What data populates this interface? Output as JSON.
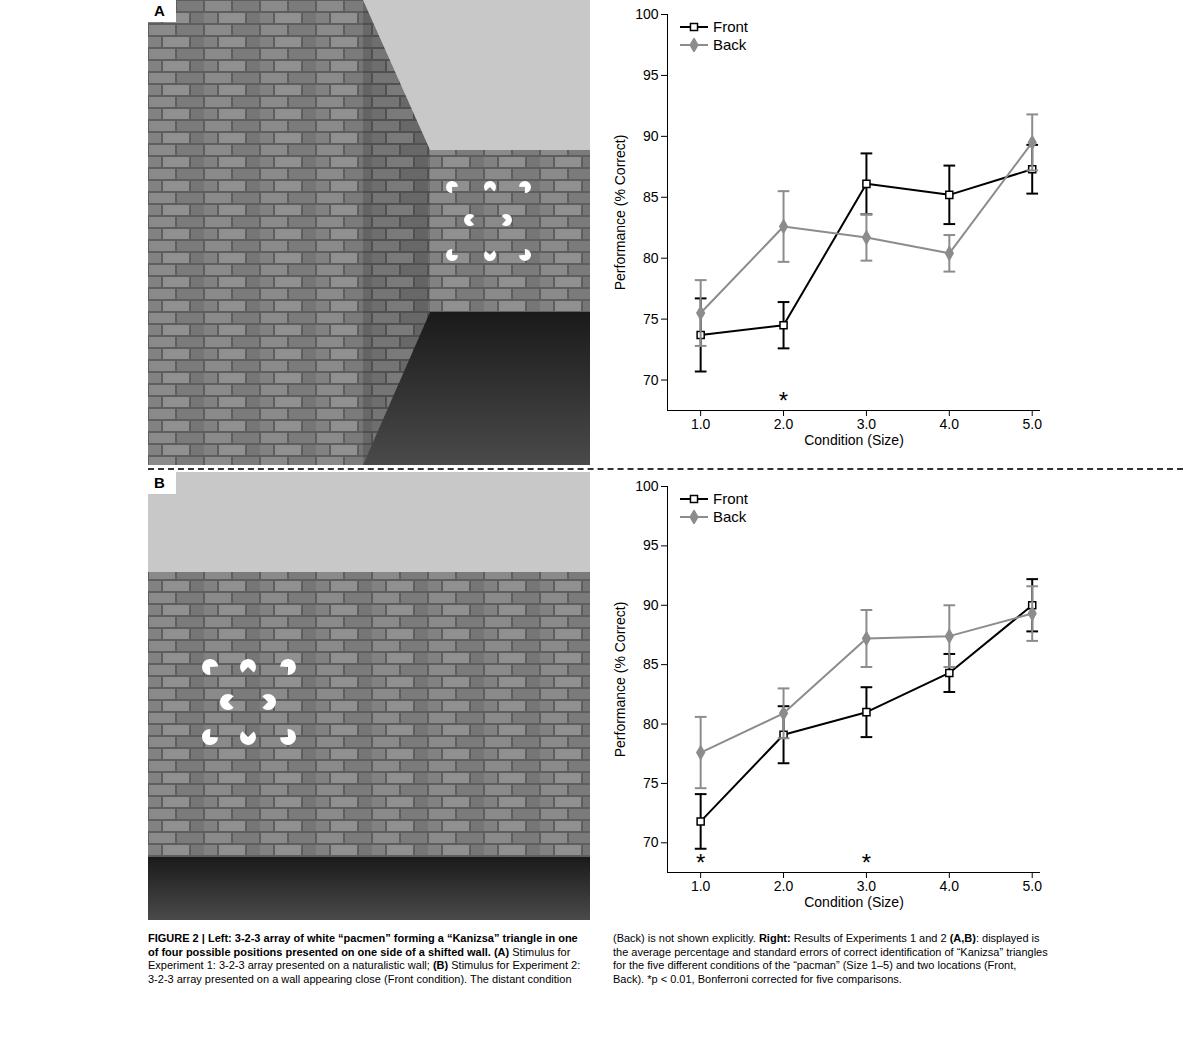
{
  "panels": [
    {
      "letter": "A"
    },
    {
      "letter": "B"
    }
  ],
  "chart_data": [
    {
      "type": "line",
      "x": [
        1,
        2,
        3,
        4,
        5
      ],
      "xlim": [
        0.6,
        5.1
      ],
      "xticks": [
        1,
        2,
        3,
        4,
        5
      ],
      "ylim": [
        67.5,
        100
      ],
      "yticks": [
        70,
        75,
        80,
        85,
        90,
        95,
        100
      ],
      "x_label": "Condition (Size)",
      "y_label": "Performance (% Correct)",
      "legend": "top-left",
      "grid": false,
      "series": [
        {
          "name": "Front",
          "color": "#000000",
          "marker": "open square",
          "line_style": "solid",
          "values": [
            73.7,
            74.5,
            86.1,
            85.2,
            87.3
          ],
          "errors": [
            3.0,
            1.9,
            2.5,
            2.4,
            2.0
          ]
        },
        {
          "name": "Back",
          "color": "#8c8c8c",
          "marker": "diamond",
          "line_style": "solid",
          "values": [
            75.5,
            82.6,
            81.7,
            80.4,
            89.5
          ],
          "errors": [
            2.7,
            2.9,
            1.9,
            1.5,
            2.3
          ]
        }
      ],
      "annotations": [
        {
          "x": 2,
          "text": "*"
        }
      ]
    },
    {
      "type": "line",
      "x": [
        1,
        2,
        3,
        4,
        5
      ],
      "xlim": [
        0.6,
        5.1
      ],
      "xticks": [
        1,
        2,
        3,
        4,
        5
      ],
      "ylim": [
        67.5,
        100
      ],
      "yticks": [
        70,
        75,
        80,
        85,
        90,
        95,
        100
      ],
      "x_label": "Condition (Size)",
      "y_label": "Performance (% Correct)",
      "legend": "top-left",
      "grid": false,
      "series": [
        {
          "name": "Front",
          "color": "#000000",
          "marker": "open square",
          "line_style": "solid",
          "values": [
            71.8,
            79.1,
            81.0,
            84.3,
            90.0
          ],
          "errors": [
            2.3,
            2.4,
            2.1,
            1.6,
            2.2
          ]
        },
        {
          "name": "Back",
          "color": "#8c8c8c",
          "marker": "diamond",
          "line_style": "solid",
          "values": [
            77.6,
            80.9,
            87.2,
            87.4,
            89.3
          ],
          "errors": [
            3.0,
            2.1,
            2.4,
            2.6,
            2.3
          ]
        }
      ],
      "annotations": [
        {
          "x": 1,
          "text": "*"
        },
        {
          "x": 3,
          "text": "*"
        }
      ]
    }
  ],
  "caption": [
    {
      "text": "FIGURE 2 | Left: 3-2-3 array of white “pacmen” forming a “Kanizsa” triangle in one of four possible positions presented on one side of a shifted wall.",
      "bold": true
    },
    {
      "text": " ",
      "bold": false
    },
    {
      "text": "(A)",
      "bold": true
    },
    {
      "text": " Stimulus for Experiment 1: 3-2-3 array presented on a naturalistic wall; ",
      "bold": false
    },
    {
      "text": "(B)",
      "bold": true
    },
    {
      "text": " Stimulus for Experiment 2: 3-2-3 array presented on a wall appearing close (Front condition). The distant condition (Back) is not shown explicitly. ",
      "bold": false
    },
    {
      "text": "Right:",
      "bold": true
    },
    {
      "text": " Results of Experiments 1 and 2 ",
      "bold": false
    },
    {
      "text": "(A,B)",
      "bold": true
    },
    {
      "text": ": displayed is the average percentage and standard errors of correct identification of “Kanizsa” triangles for the five different conditions of the “pacman” (Size 1–5) and two locations (Front, Back). *p < 0.01, Bonferroni corrected for five comparisons.",
      "bold": false
    }
  ]
}
